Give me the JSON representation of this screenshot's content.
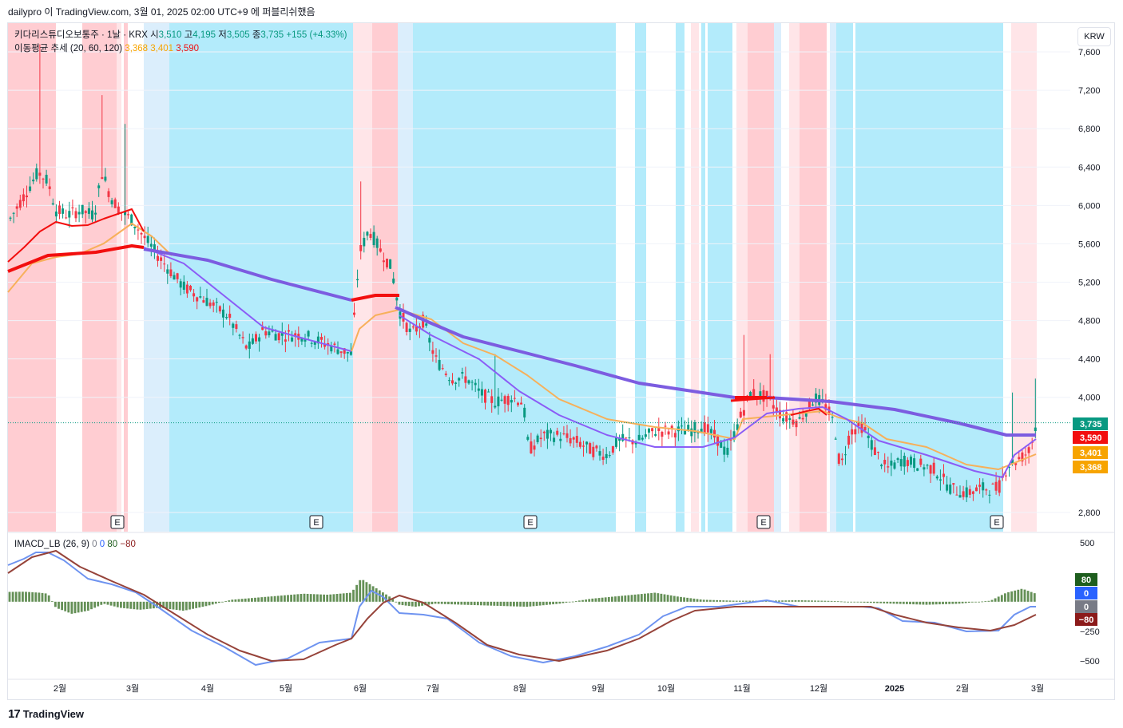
{
  "header": {
    "attribution": "dailypro 이 TradingView.com, 3월 01, 2025 02:00 UTC+9 에 퍼블리쉬했음"
  },
  "legend": {
    "symbol": "키다리스튜디오보통주 · 1날 · KRX",
    "o_label": "시",
    "o_value": "3,510",
    "h_label": "고",
    "h_value": "4,195",
    "l_label": "저",
    "l_value": "3,505",
    "c_label": "종",
    "c_value": "3,735",
    "change": "+155 (+4.33%)",
    "ma_title": "이동평균 추세 (20, 60, 120)",
    "ma20": "3,368",
    "ma60": "3,401",
    "ma120": "3,590",
    "imacd_title": "IMACD_LB (26, 9)",
    "imacd_v1": "0",
    "imacd_v2": "0",
    "imacd_v3": "80",
    "imacd_v4": "−80"
  },
  "currency_button": "KRW",
  "brand": "TradingView",
  "colors": {
    "up": "#089981",
    "down": "#f23645",
    "ma20": "#f7b05a",
    "ma60_bear": "#8b5cf6",
    "ma120_bear": "#7c5ce0",
    "ma_bull": "#f20f0f",
    "zone_bull_strong": "#ffcdd2",
    "zone_bull_weak": "#ffe5e8",
    "zone_bear_strong": "#b3ebfb",
    "zone_bear_weak": "#dbeefc",
    "macd_fast": "#6e93f0",
    "macd_slow": "#96433a",
    "hist": "#4a7d3a"
  },
  "chart_data": [
    {
      "type": "candlestick",
      "title": "키다리스튜디오보통주 · 1날 · KRX",
      "y_axis_ticks": [
        "7,600",
        "7,200",
        "6,800",
        "6,400",
        "6,000",
        "5,600",
        "5,200",
        "4,800",
        "4,400",
        "4,000",
        "2,800"
      ],
      "x_axis_ticks": [
        "2월",
        "3월",
        "4월",
        "5월",
        "6월",
        "7월",
        "8월",
        "9월",
        "10월",
        "11월",
        "12월",
        "2025",
        "2월",
        "3월"
      ],
      "ylim": [
        2600,
        7900
      ],
      "last": {
        "open": 3510,
        "high": 4195,
        "low": 3505,
        "close": 3735,
        "change": 155,
        "change_pct": 4.33
      },
      "price_tags": [
        {
          "label": "3,735",
          "value": 3735,
          "color": "#089981"
        },
        {
          "label": "3,590",
          "value": 3590,
          "color": "#f20f0f"
        },
        {
          "label": "3,401",
          "value": 3401,
          "color": "#f7a400"
        },
        {
          "label": "3,368",
          "value": 3368,
          "color": "#f7a400"
        }
      ],
      "earnings_markers": [
        "E",
        "E",
        "E",
        "E",
        "E"
      ],
      "ma_periods": [
        20,
        60,
        120
      ]
    },
    {
      "type": "line+histogram",
      "title": "IMACD_LB (26, 9)",
      "y_axis_ticks": [
        "500",
        "−250",
        "−500"
      ],
      "ylim": [
        -650,
        580
      ],
      "value_tags": [
        {
          "label": "80",
          "value": 80,
          "color": "#1e5e1e"
        },
        {
          "label": "0",
          "value": 0,
          "color": "#2962ff"
        },
        {
          "label": "0",
          "value": 0,
          "color": "#787b86"
        },
        {
          "label": "−80",
          "value": -80,
          "color": "#8b1a1a"
        }
      ]
    }
  ]
}
